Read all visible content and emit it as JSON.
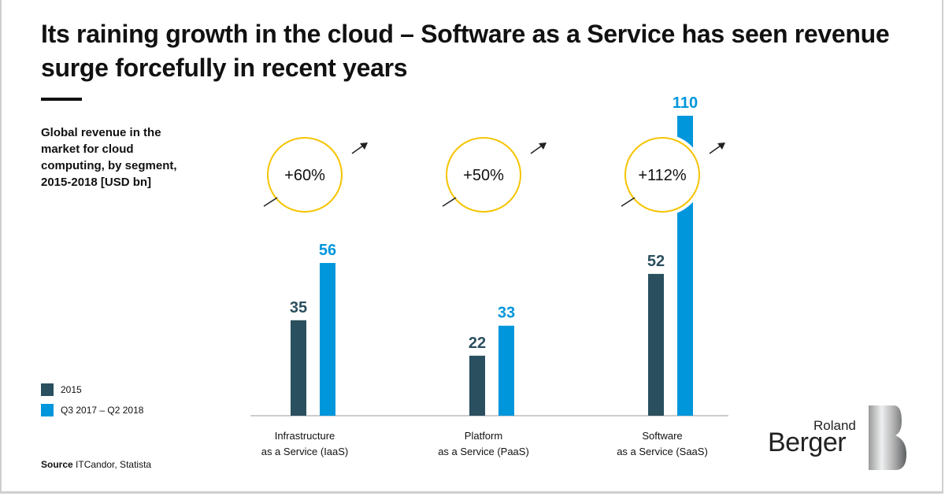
{
  "title": "Its raining growth in the cloud – Software as a Service has seen revenue surge forcefully in recent years",
  "subtitle": "Global revenue in the market for cloud computing, by segment, 2015-2018 [USD bn]",
  "source_label": "Source",
  "source_text": "ITCandor, Statista",
  "logo": {
    "line1": "Roland",
    "line2": "Berger"
  },
  "colors": {
    "series_2015": "#2a4f5e",
    "series_recent": "#0096dc",
    "circle": "#f5c400"
  },
  "chart_data": {
    "type": "bar",
    "categories": [
      "Infrastructure\nas a Service (IaaS)",
      "Platform\nas a Service (PaaS)",
      "Software\nas a Service (SaaS)"
    ],
    "category_lines": [
      [
        "Infrastructure",
        "as a Service (IaaS)"
      ],
      [
        "Platform",
        "as a Service (PaaS)"
      ],
      [
        "Software",
        "as a Service (SaaS)"
      ]
    ],
    "series": [
      {
        "name": "2015",
        "values": [
          35,
          22,
          52
        ]
      },
      {
        "name": "Q3 2017 – Q2 2018",
        "values": [
          56,
          33,
          110
        ]
      }
    ],
    "growth_labels": [
      "+60%",
      "+50%",
      "+112%"
    ],
    "ylim": [
      0,
      110
    ],
    "grid": false,
    "legend": "bottom-left"
  }
}
